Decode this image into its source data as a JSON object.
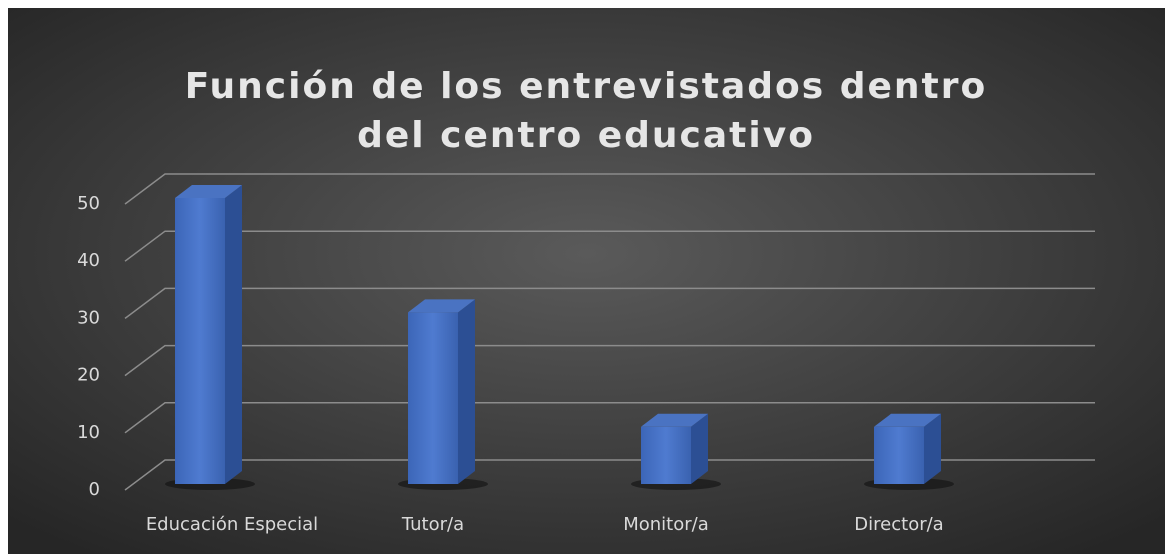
{
  "chart_data": {
    "type": "bar3d",
    "title": "Función de los entrevistados dentro del centro educativo",
    "categories": [
      "Educación Especial",
      "Tutor/a",
      "Monitor/a",
      "Director/a"
    ],
    "values": [
      50,
      30,
      10,
      10
    ],
    "color": "#4472c4",
    "ylim": [
      0,
      50
    ],
    "yticks": [
      0,
      10,
      20,
      30,
      40,
      50
    ],
    "grid": true
  }
}
